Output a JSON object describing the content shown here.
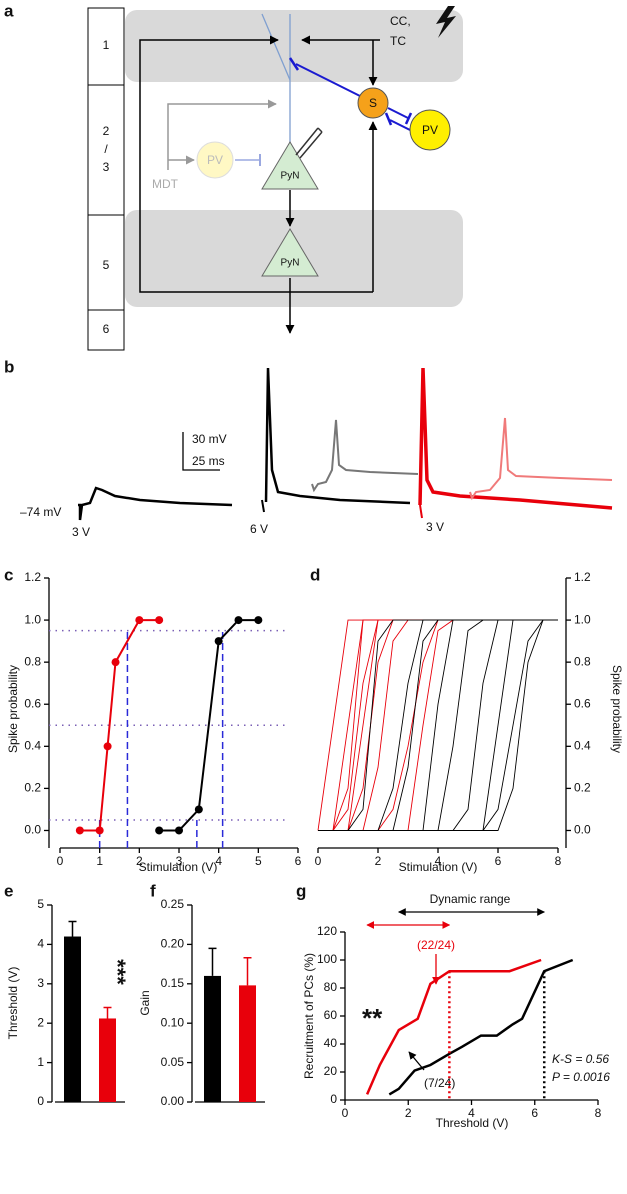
{
  "panel_labels": [
    "a",
    "b",
    "c",
    "d",
    "e",
    "f",
    "g"
  ],
  "diagram": {
    "layers": [
      "1",
      "2",
      "/",
      "3",
      "5",
      "6"
    ],
    "cc": "CC,",
    "tc": "TC",
    "s": "S",
    "pv": "PV",
    "pv_faded": "PV",
    "pyn_top": "PyN",
    "pyn_bottom": "PyN",
    "mdt": "MDT"
  },
  "traces": {
    "scale_mv": "30 mV",
    "scale_ms": "25 ms",
    "rest": "–74 mV",
    "stim1": "3 V",
    "stim2": "6 V",
    "stim3": "3 V"
  },
  "chart_data": [
    {
      "type": "line",
      "xlabel": "Stimulation (V)",
      "ylabel": "Spike probability",
      "xlim": [
        0,
        6
      ],
      "xticks": [
        0,
        1,
        2,
        3,
        4,
        5,
        6
      ],
      "ylim": [
        -0.05,
        1.2
      ],
      "yticks": [
        {
          "value": 0,
          "label": "0.0"
        },
        0.2,
        0.4,
        0.6,
        0.8,
        {
          "value": 1,
          "label": "1.0"
        },
        1.2
      ],
      "series": [
        {
          "color": "#e8000b",
          "x": [
            0.5,
            1,
            1.2,
            1.4,
            2,
            2.5
          ],
          "values": [
            0,
            0,
            0.4,
            0.8,
            1,
            1
          ]
        },
        {
          "color": "#000000",
          "x": [
            2.5,
            3,
            3.5,
            4,
            4.5,
            5
          ],
          "values": [
            0,
            0,
            0.1,
            0.9,
            1,
            1
          ]
        }
      ],
      "dotted_levels": [
        0.05,
        0.5,
        0.95
      ],
      "thresholds": [
        1.0,
        3.45
      ],
      "saturations": [
        1.7,
        4.1
      ],
      "guide_color": "#2a2ad8"
    },
    {
      "type": "line",
      "xlabel": "Stimulation (V)",
      "ylabel": "Spike probability",
      "xlim": [
        0,
        8
      ],
      "xticks": [
        0,
        2,
        4,
        6,
        8
      ],
      "ylim": [
        -0.05,
        1.2
      ],
      "yticks": [
        {
          "value": 0,
          "label": "0.0"
        },
        0.2,
        0.4,
        0.6,
        0.8,
        {
          "value": 1,
          "label": "1.0"
        },
        1.2
      ],
      "x": [
        0,
        0.5,
        1,
        1.5,
        2,
        2.5,
        3,
        3.5,
        4,
        4.5,
        5,
        5.5,
        6,
        6.5,
        7,
        7.5,
        8
      ],
      "series": [
        {
          "color": "#e8000b",
          "values": [
            0,
            0.5,
            1,
            1,
            1,
            1,
            1,
            1,
            1,
            1,
            1,
            1,
            1,
            1,
            1,
            1,
            1
          ]
        },
        {
          "color": "#e8000b",
          "values": [
            0,
            0,
            0.5,
            1,
            1,
            1,
            1,
            1,
            1,
            1,
            1,
            1,
            1,
            1,
            1,
            1,
            1
          ]
        },
        {
          "color": "#e8000b",
          "values": [
            0,
            0,
            0.2,
            1,
            1,
            1,
            1,
            1,
            1,
            1,
            1,
            1,
            1,
            1,
            1,
            1,
            1
          ]
        },
        {
          "color": "#e8000b",
          "values": [
            0,
            0,
            0,
            0.5,
            1,
            1,
            1,
            1,
            1,
            1,
            1,
            1,
            1,
            1,
            1,
            1,
            1
          ]
        },
        {
          "color": "#e8000b",
          "values": [
            0,
            0,
            0.1,
            0.7,
            1,
            1,
            1,
            1,
            1,
            1,
            1,
            1,
            1,
            1,
            1,
            1,
            1
          ]
        },
        {
          "color": "#e8000b",
          "values": [
            0,
            0,
            0,
            0.2,
            0.8,
            1,
            1,
            1,
            1,
            1,
            1,
            1,
            1,
            1,
            1,
            1,
            1
          ]
        },
        {
          "color": "#e8000b",
          "values": [
            0,
            0,
            0,
            0,
            0.3,
            0.9,
            1,
            1,
            1,
            1,
            1,
            1,
            1,
            1,
            1,
            1,
            1
          ]
        },
        {
          "color": "#e8000b",
          "values": [
            0,
            0,
            0,
            0,
            0,
            0.1,
            0.4,
            0.8,
            1,
            1,
            1,
            1,
            1,
            1,
            1,
            1,
            1
          ]
        },
        {
          "color": "#e8000b",
          "values": [
            0,
            0,
            0,
            0,
            0,
            0,
            0,
            0.5,
            0.95,
            1,
            1,
            1,
            1,
            1,
            1,
            1,
            1
          ]
        },
        {
          "color": "#000000",
          "values": [
            0,
            0,
            0,
            0.1,
            0.9,
            1,
            1,
            1,
            1,
            1,
            1,
            1,
            1,
            1,
            1,
            1,
            1
          ]
        },
        {
          "color": "#000000",
          "values": [
            0,
            0,
            0,
            0,
            0,
            0.2,
            0.7,
            1,
            1,
            1,
            1,
            1,
            1,
            1,
            1,
            1,
            1
          ]
        },
        {
          "color": "#000000",
          "values": [
            0,
            0,
            0,
            0,
            0,
            0,
            0.3,
            0.9,
            1,
            1,
            1,
            1,
            1,
            1,
            1,
            1,
            1
          ]
        },
        {
          "color": "#000000",
          "values": [
            0,
            0,
            0,
            0,
            0,
            0,
            0,
            0,
            0.6,
            1,
            1,
            1,
            1,
            1,
            1,
            1,
            1
          ]
        },
        {
          "color": "#000000",
          "values": [
            0,
            0,
            0,
            0,
            0,
            0,
            0,
            0,
            0,
            0.4,
            0.95,
            1,
            1,
            1,
            1,
            1,
            1
          ]
        },
        {
          "color": "#000000",
          "values": [
            0,
            0,
            0,
            0,
            0,
            0,
            0,
            0,
            0,
            0,
            0.1,
            0.7,
            1,
            1,
            1,
            1,
            1
          ]
        },
        {
          "color": "#000000",
          "values": [
            0,
            0,
            0,
            0,
            0,
            0,
            0,
            0,
            0,
            0,
            0,
            0,
            0.5,
            1,
            1,
            1,
            1
          ]
        },
        {
          "color": "#000000",
          "values": [
            0,
            0,
            0,
            0,
            0,
            0,
            0,
            0,
            0,
            0,
            0,
            0,
            0.1,
            0.5,
            0.9,
            1,
            1
          ]
        },
        {
          "color": "#000000",
          "values": [
            0,
            0,
            0,
            0,
            0,
            0,
            0,
            0,
            0,
            0,
            0,
            0,
            0,
            0.2,
            0.8,
            1,
            1
          ]
        }
      ]
    },
    {
      "type": "bar",
      "ylabel": "Threshold (V)",
      "categories": [
        null,
        null
      ],
      "values": [
        4.2,
        2.12
      ],
      "errors": [
        0.38,
        0.28
      ],
      "colors": [
        "#000000",
        "#e8000b"
      ],
      "ylim": [
        0,
        5
      ],
      "yticks": [
        0,
        1,
        2,
        3,
        4,
        5
      ],
      "annotation": "***"
    },
    {
      "type": "bar",
      "ylabel": "Gain",
      "categories": [
        null,
        null
      ],
      "values": [
        0.16,
        0.148
      ],
      "errors": [
        0.035,
        0.035
      ],
      "colors": [
        "#000000",
        "#e8000b"
      ],
      "ylim": [
        0,
        0.25
      ],
      "yticks": [
        {
          "value": 0,
          "label": "0.00"
        },
        0.05,
        {
          "value": 0.1,
          "label": "0.10"
        },
        0.15,
        {
          "value": 0.2,
          "label": "0.20"
        },
        0.25
      ]
    },
    {
      "type": "line",
      "xlabel": "Threshold (V)",
      "ylabel": "Recruitment of PCs (%)",
      "xlim": [
        0,
        8
      ],
      "xticks": [
        0,
        2,
        4,
        6,
        8
      ],
      "ylim": [
        0,
        120
      ],
      "yticks": [
        0,
        20,
        40,
        60,
        80,
        100,
        120
      ],
      "series": [
        {
          "color": "#e8000b",
          "x": [
            0.7,
            1.1,
            1.7,
            2.3,
            2.7,
            3.3,
            5.2,
            6.2
          ],
          "values": [
            4,
            25,
            50,
            58,
            83,
            92,
            92,
            100
          ]
        },
        {
          "color": "#000000",
          "x": [
            1.4,
            1.7,
            2.2,
            2.7,
            3.3,
            3.7,
            4.3,
            4.8,
            5.3,
            5.6,
            6.3,
            7.2
          ],
          "values": [
            4,
            8,
            21,
            25,
            33,
            38,
            46,
            46,
            54,
            58,
            92,
            100
          ]
        }
      ],
      "range_label": "Dynamic range",
      "dynamic_range": [
        1.7,
        6.3
      ],
      "red_range": [
        0.7,
        3.3
      ],
      "red_note": "(22/24)",
      "black_note": "(7/24)",
      "stars": "**",
      "ks": "K-S = 0.56",
      "p": "P = 0.0016"
    }
  ]
}
